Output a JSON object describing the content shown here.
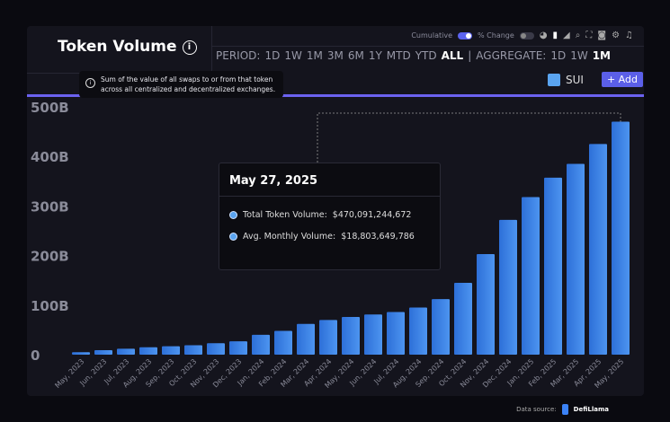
{
  "header": {
    "title": "Token Volume",
    "info_tooltip": "Sum of the value of all swaps to or from that token across all centralized and decentralized exchanges."
  },
  "toolbar": {
    "cumulative_label": "Cumulative",
    "cumulative_on": true,
    "pct_change_label": "% Change",
    "pct_change_on": false,
    "icons": [
      "pie-chart-icon",
      "bar-chart-icon",
      "area-chart-icon",
      "zoom-icon",
      "fullscreen-icon",
      "camera-icon",
      "settings-icon",
      "notification-icon"
    ]
  },
  "period": {
    "label": "PERIOD:",
    "options": [
      "1D",
      "1W",
      "1M",
      "3M",
      "6M",
      "1Y",
      "MTD",
      "YTD",
      "ALL"
    ],
    "selected": "ALL"
  },
  "aggregate": {
    "label": "AGGREGATE:",
    "options": [
      "1D",
      "1W",
      "1M"
    ],
    "selected": "1M"
  },
  "legend": {
    "series": "SUI",
    "color": "#5aa4f0",
    "add_label": "+ Add"
  },
  "accent_color": "#6b62f0",
  "hover": {
    "date": "May 27, 2025",
    "rows": [
      {
        "label": "Total Token Volume:",
        "value": "$470,091,244,672"
      },
      {
        "label": "Avg. Monthly Volume:",
        "value": "$18,803,649,786"
      }
    ]
  },
  "footer": {
    "source_label": "Data source:",
    "source_name": "DefiLlama"
  },
  "chart_data": {
    "type": "bar",
    "ylim": [
      0,
      500
    ],
    "yunit": "B",
    "yticks": [
      "0",
      "100B",
      "200B",
      "300B",
      "400B",
      "500B"
    ],
    "categories": [
      "May, 2023",
      "Jun, 2023",
      "Jul, 2023",
      "Aug, 2023",
      "Sep, 2023",
      "Oct, 2023",
      "Nov, 2023",
      "Dec, 2023",
      "Jan, 2024",
      "Feb, 2024",
      "Mar, 2024",
      "Apr, 2024",
      "May, 2024",
      "Jun, 2024",
      "Jul, 2024",
      "Aug, 2024",
      "Sep, 2024",
      "Oct, 2024",
      "Nov, 2024",
      "Dec, 2024",
      "Jan, 2025",
      "Feb, 2025",
      "Mar, 2025",
      "Apr, 2025",
      "May, 2025"
    ],
    "series": [
      {
        "name": "SUI",
        "values": [
          5,
          9,
          12,
          15,
          17,
          19,
          23,
          27,
          40,
          48,
          62,
          70,
          76,
          81,
          86,
          95,
          112,
          145,
          203,
          272,
          318,
          357,
          385,
          425,
          470
        ]
      }
    ]
  }
}
